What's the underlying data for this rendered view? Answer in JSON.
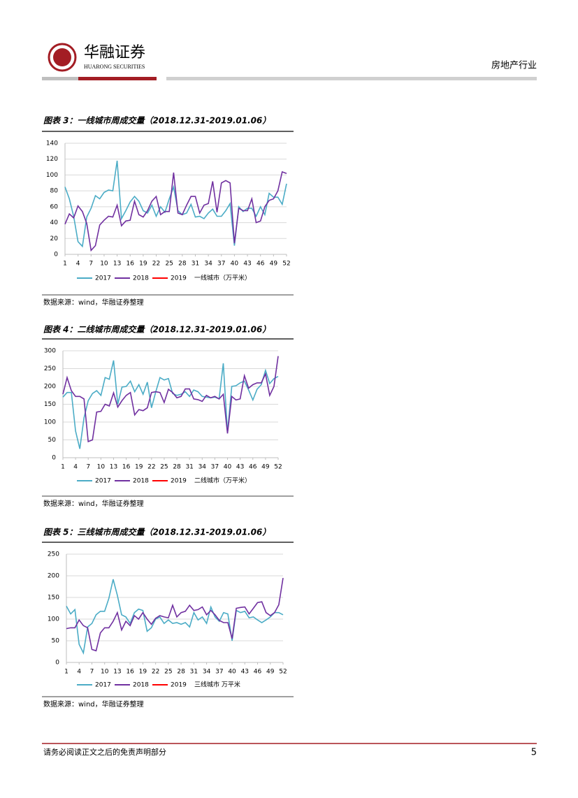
{
  "header": {
    "company": "华融证券",
    "company_en": "HUARONG SECURITIES",
    "industry": "房地产行业"
  },
  "footer": {
    "disclaimer": "请务必阅读正文之后的免责声明部分",
    "page": "5"
  },
  "chart_data": [
    {
      "type": "line",
      "title": "图表 3：一线城市周成交量（2018.12.31-2019.01.06）",
      "source": "数据来源：wind，华融证券整理",
      "legend_note": "一线城市（万平米）",
      "x": [
        1,
        2,
        3,
        4,
        5,
        6,
        7,
        8,
        9,
        10,
        11,
        12,
        13,
        14,
        15,
        16,
        17,
        18,
        19,
        20,
        21,
        22,
        23,
        24,
        25,
        26,
        27,
        28,
        29,
        30,
        31,
        32,
        33,
        34,
        35,
        36,
        37,
        38,
        39,
        40,
        41,
        42,
        43,
        44,
        45,
        46,
        47,
        48,
        49,
        50,
        51,
        52
      ],
      "xlim": [
        1,
        52
      ],
      "xticks": [
        1,
        4,
        7,
        10,
        13,
        16,
        19,
        22,
        25,
        28,
        31,
        34,
        37,
        40,
        43,
        46,
        49,
        52
      ],
      "ylim": [
        0,
        140
      ],
      "yticks": [
        0,
        20,
        40,
        60,
        80,
        100,
        120,
        140
      ],
      "grid": true,
      "series": [
        {
          "name": "2017",
          "color": "#4bacc6",
          "values": [
            85,
            70,
            48,
            16,
            10,
            47,
            58,
            74,
            70,
            78,
            81,
            80,
            118,
            45,
            55,
            66,
            73,
            67,
            55,
            52,
            62,
            48,
            60,
            53,
            70,
            85,
            55,
            50,
            52,
            63,
            47,
            48,
            45,
            52,
            57,
            48,
            48,
            55,
            64,
            11,
            60,
            54,
            58,
            58,
            48,
            60,
            50,
            77,
            72,
            72,
            63,
            89
          ]
        },
        {
          "name": "2018",
          "color": "#7030a0",
          "values": [
            38,
            51,
            46,
            61,
            54,
            39,
            5,
            11,
            37,
            43,
            48,
            47,
            62,
            36,
            42,
            43,
            67,
            50,
            47,
            55,
            67,
            73,
            50,
            54,
            54,
            103,
            52,
            50,
            62,
            73,
            73,
            52,
            62,
            64,
            92,
            53,
            90,
            93,
            90,
            14,
            58,
            55,
            55,
            70,
            40,
            42,
            60,
            68,
            70,
            80,
            104,
            102
          ]
        },
        {
          "name": "2019",
          "color": "#ff0000",
          "values": [
            null,
            null,
            null,
            null,
            null,
            null,
            null,
            null,
            null,
            null,
            null,
            null,
            null,
            null,
            null,
            null,
            null,
            null,
            null,
            null,
            null,
            null,
            null,
            null,
            null,
            null,
            null,
            null,
            null,
            null,
            null,
            null,
            null,
            null,
            null,
            null,
            null,
            null,
            null,
            null,
            null,
            null,
            null,
            null,
            null,
            null,
            null,
            null,
            null,
            null,
            null,
            null
          ]
        }
      ]
    },
    {
      "type": "line",
      "title": "图表 4：二线城市周成交量（2018.12.31-2019.01.06）",
      "source": "数据来源：wind，华融证券整理",
      "legend_note": "二线城市（万平米）",
      "x": [
        1,
        2,
        3,
        4,
        5,
        6,
        7,
        8,
        9,
        10,
        11,
        12,
        13,
        14,
        15,
        16,
        17,
        18,
        19,
        20,
        21,
        22,
        23,
        24,
        25,
        26,
        27,
        28,
        29,
        30,
        31,
        32,
        33,
        34,
        35,
        36,
        37,
        38,
        39,
        40,
        41,
        42,
        43,
        44,
        45,
        46,
        47,
        48,
        49,
        50,
        51,
        52
      ],
      "xlim": [
        1,
        52
      ],
      "xticks": [
        1,
        4,
        7,
        10,
        13,
        16,
        19,
        22,
        25,
        28,
        31,
        34,
        37,
        40,
        43,
        46,
        49,
        52
      ],
      "ylim": [
        0,
        300
      ],
      "yticks": [
        0,
        50,
        100,
        150,
        200,
        250,
        300
      ],
      "grid": true,
      "series": [
        {
          "name": "2017",
          "color": "#4bacc6",
          "values": [
            170,
            183,
            183,
            75,
            25,
            112,
            160,
            180,
            188,
            175,
            225,
            220,
            273,
            150,
            198,
            200,
            215,
            185,
            205,
            178,
            212,
            140,
            185,
            225,
            218,
            222,
            180,
            175,
            178,
            185,
            172,
            190,
            185,
            172,
            170,
            168,
            170,
            165,
            265,
            70,
            200,
            202,
            210,
            215,
            190,
            162,
            192,
            205,
            245,
            208,
            222,
            228
          ]
        },
        {
          "name": "2018",
          "color": "#7030a0",
          "values": [
            178,
            225,
            188,
            172,
            172,
            165,
            45,
            50,
            128,
            130,
            150,
            145,
            182,
            142,
            160,
            175,
            183,
            120,
            135,
            132,
            140,
            183,
            185,
            183,
            155,
            192,
            183,
            168,
            172,
            193,
            193,
            165,
            163,
            158,
            175,
            168,
            172,
            165,
            178,
            68,
            172,
            162,
            165,
            230,
            195,
            205,
            210,
            210,
            235,
            175,
            200,
            285
          ]
        },
        {
          "name": "2019",
          "color": "#ff0000",
          "values": [
            null,
            null,
            null,
            null,
            null,
            null,
            null,
            null,
            null,
            null,
            null,
            null,
            null,
            null,
            null,
            null,
            null,
            null,
            null,
            null,
            null,
            null,
            null,
            null,
            null,
            null,
            null,
            null,
            null,
            null,
            null,
            null,
            null,
            null,
            null,
            null,
            null,
            null,
            null,
            null,
            null,
            null,
            null,
            null,
            null,
            null,
            null,
            null,
            null,
            null,
            null,
            null
          ]
        }
      ]
    },
    {
      "type": "line",
      "title": "图表 5：三线城市周成交量（2018.12.31-2019.01.06）",
      "source": "数据来源：wind，华融证券整理",
      "legend_note": "三线城市 万平米",
      "x": [
        1,
        2,
        3,
        4,
        5,
        6,
        7,
        8,
        9,
        10,
        11,
        12,
        13,
        14,
        15,
        16,
        17,
        18,
        19,
        20,
        21,
        22,
        23,
        24,
        25,
        26,
        27,
        28,
        29,
        30,
        31,
        32,
        33,
        34,
        35,
        36,
        37,
        38,
        39,
        40,
        41,
        42,
        43,
        44,
        45,
        46,
        47,
        48,
        49,
        50,
        51,
        52
      ],
      "xlim": [
        1,
        52
      ],
      "xticks": [
        1,
        4,
        7,
        10,
        13,
        16,
        19,
        22,
        25,
        28,
        31,
        34,
        37,
        40,
        43,
        46,
        49,
        52
      ],
      "ylim": [
        0,
        250
      ],
      "yticks": [
        0,
        50,
        100,
        150,
        200,
        250
      ],
      "grid": true,
      "series": [
        {
          "name": "2017",
          "color": "#4bacc6",
          "values": [
            130,
            112,
            122,
            42,
            22,
            82,
            90,
            110,
            118,
            118,
            148,
            192,
            155,
            110,
            105,
            90,
            115,
            123,
            120,
            72,
            80,
            100,
            105,
            90,
            98,
            90,
            92,
            88,
            92,
            82,
            115,
            98,
            105,
            90,
            128,
            105,
            95,
            115,
            112,
            50,
            120,
            115,
            118,
            103,
            105,
            98,
            92,
            98,
            105,
            115,
            115,
            110
          ]
        },
        {
          "name": "2018",
          "color": "#7030a0",
          "values": [
            78,
            80,
            80,
            98,
            85,
            80,
            30,
            27,
            68,
            80,
            80,
            95,
            115,
            75,
            95,
            85,
            108,
            100,
            115,
            100,
            88,
            102,
            108,
            105,
            103,
            132,
            105,
            115,
            118,
            132,
            120,
            122,
            128,
            110,
            120,
            110,
            97,
            92,
            92,
            55,
            125,
            127,
            128,
            112,
            125,
            138,
            140,
            115,
            108,
            115,
            133,
            195
          ]
        },
        {
          "name": "2019",
          "color": "#ff0000",
          "values": [
            null,
            null,
            null,
            null,
            null,
            null,
            null,
            null,
            null,
            null,
            null,
            null,
            null,
            null,
            null,
            null,
            null,
            null,
            null,
            null,
            null,
            null,
            null,
            null,
            null,
            null,
            null,
            null,
            null,
            null,
            null,
            null,
            null,
            null,
            null,
            null,
            null,
            null,
            null,
            null,
            null,
            null,
            null,
            null,
            null,
            null,
            null,
            null,
            null,
            null,
            null,
            null
          ]
        }
      ]
    }
  ]
}
